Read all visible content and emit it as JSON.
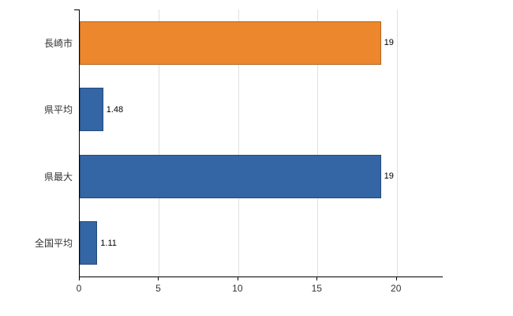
{
  "chart_data": {
    "type": "bar",
    "orientation": "horizontal",
    "title": "",
    "xlabel": "",
    "ylabel": "",
    "categories": [
      "長崎市",
      "県平均",
      "県最大",
      "全国平均"
    ],
    "values": [
      19,
      1.48,
      19,
      1.11
    ],
    "value_labels": [
      "19",
      "1.48",
      "19",
      "1.11"
    ],
    "bar_colors": [
      "#ed872d",
      "#3465a4",
      "#3465a4",
      "#3465a4"
    ],
    "xlim": [
      0,
      22.9
    ],
    "ticks": [
      0,
      5,
      10,
      15,
      20
    ],
    "tick_labels": [
      "0",
      "5",
      "10",
      "15",
      "20"
    ],
    "grid": "vertical-light-gray",
    "legend": "none"
  },
  "colors": {
    "highlight_orange": "#ed872d",
    "series_blue": "#3465a4",
    "grid": "#e0e0e0",
    "axis": "#000000",
    "label_text": "#333333",
    "background": "#ffffff"
  }
}
